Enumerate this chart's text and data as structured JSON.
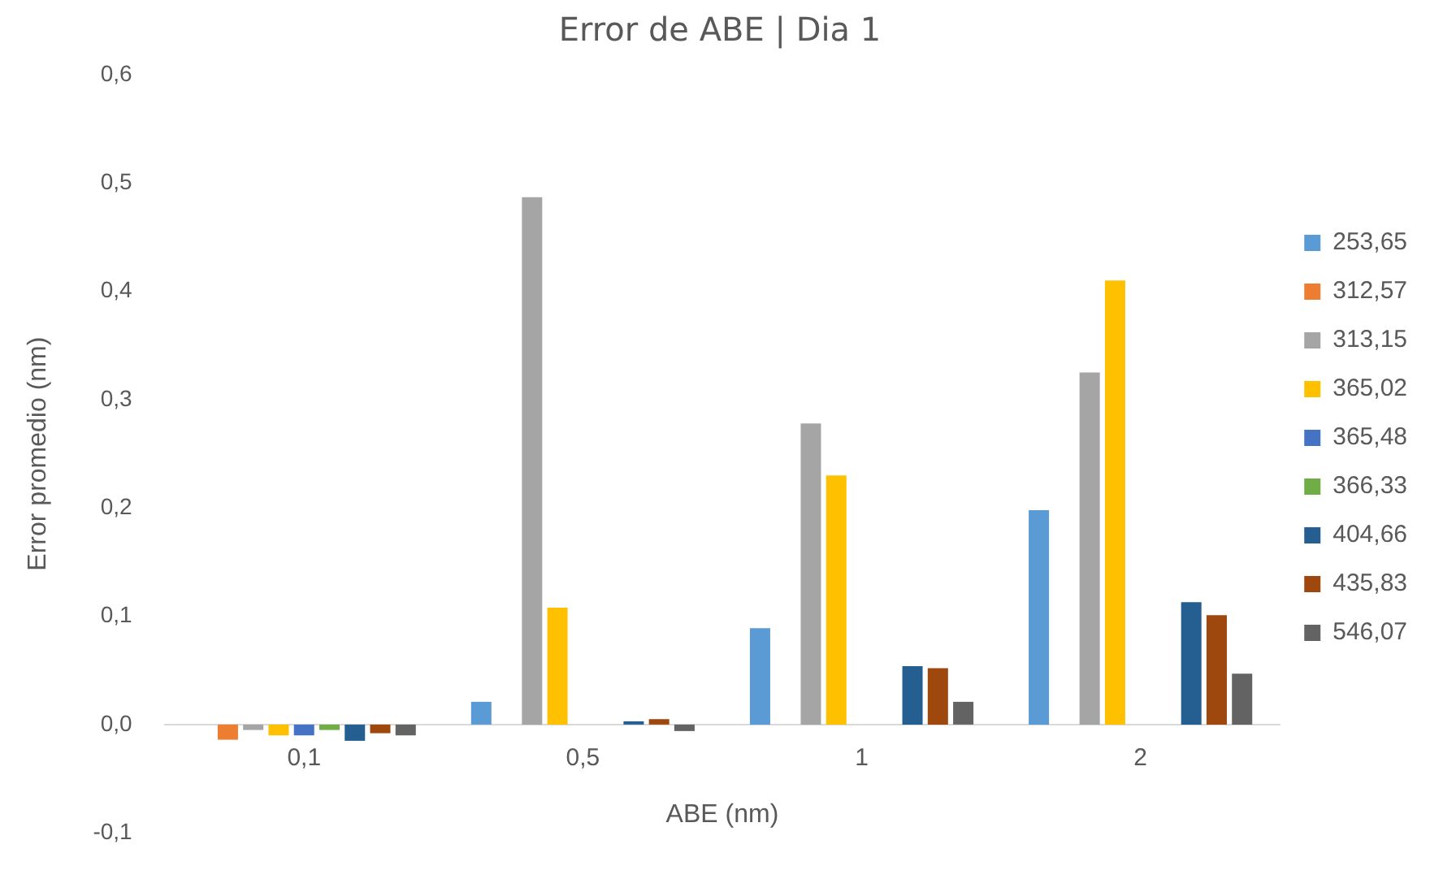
{
  "chart_data": {
    "type": "bar",
    "title": "Error de ABE | Dia 1",
    "xlabel": "ABE (nm)",
    "ylabel": "Error promedio (nm)",
    "categories": [
      "0,1",
      "0,5",
      "1",
      "2"
    ],
    "series": [
      {
        "name": "253,65",
        "color": "#5b9bd5",
        "values": [
          null,
          0.021,
          0.089,
          0.198
        ]
      },
      {
        "name": "312,57",
        "color": "#ed7d31",
        "values": [
          -0.014,
          null,
          null,
          null
        ]
      },
      {
        "name": "313,15",
        "color": "#a5a5a5",
        "values": [
          -0.005,
          0.487,
          0.278,
          0.325
        ]
      },
      {
        "name": "365,02",
        "color": "#ffc000",
        "values": [
          -0.01,
          0.108,
          0.23,
          0.41
        ]
      },
      {
        "name": "365,48",
        "color": "#4472c4",
        "values": [
          -0.01,
          null,
          null,
          null
        ]
      },
      {
        "name": "366,33",
        "color": "#70ad47",
        "values": [
          -0.005,
          null,
          null,
          null
        ]
      },
      {
        "name": "404,66",
        "color": "#255e91",
        "values": [
          -0.015,
          0.003,
          0.054,
          0.113
        ]
      },
      {
        "name": "435,83",
        "color": "#9e480e",
        "values": [
          -0.008,
          0.005,
          0.052,
          0.101
        ]
      },
      {
        "name": "546,07",
        "color": "#636363",
        "values": [
          -0.01,
          -0.006,
          0.021,
          0.047
        ]
      }
    ],
    "ylim": [
      -0.1,
      0.6
    ],
    "yticks": [
      {
        "value": -0.1,
        "label": "-0,1"
      },
      {
        "value": 0,
        "label": "0,0"
      },
      {
        "value": 0.1,
        "label": "0,1"
      },
      {
        "value": 0.2,
        "label": "0,2"
      },
      {
        "value": 0.3,
        "label": "0,3"
      },
      {
        "value": 0.4,
        "label": "0,4"
      },
      {
        "value": 0.5,
        "label": "0,5"
      },
      {
        "value": 0.6,
        "label": "0,6"
      }
    ],
    "grid": false,
    "legend": "right"
  }
}
